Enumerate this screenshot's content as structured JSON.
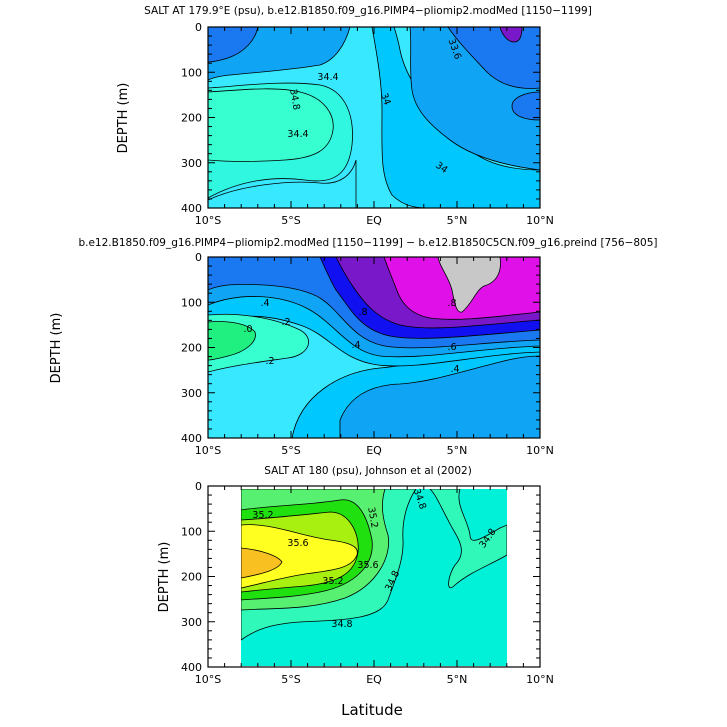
{
  "chart_data": [
    {
      "type": "contour",
      "title": "SALT AT 179.9°E (psu), b.e12.B1850.f09_g16.PIMP4−pliomip2.modMed [1150−1199]",
      "ylabel": "DEPTH (m)",
      "xlabel": "",
      "xlim": [
        -10,
        10
      ],
      "ylim": [
        0,
        400
      ],
      "x_ticks": [
        "10°S",
        "5°S",
        "EQ",
        "5°N",
        "10°N"
      ],
      "y_ticks": [
        "0",
        "100",
        "200",
        "300",
        "400"
      ],
      "contour_labels": [
        "34.4",
        "34.8",
        "34.4",
        "34",
        "34",
        "33.6"
      ],
      "colors": {
        "lightest": "#38e8ff",
        "light": "#00c8ff",
        "mid": "#10a4f4",
        "dark": "#1a78f0",
        "cyan_green": "#38ffd0",
        "aqua": "#30f8e0",
        "purple": "#7818c8"
      }
    },
    {
      "type": "contour",
      "title": "b.e12.B1850.f09_g16.PIMP4−pliomip2.modMed [1150−1199] − b.e12.B1850C5CN.f09_g16.preind [756−805]",
      "ylabel": "DEPTH (m)",
      "xlabel": "",
      "xlim": [
        -10,
        10
      ],
      "ylim": [
        0,
        400
      ],
      "x_ticks": [
        "10°S",
        "5°S",
        "EQ",
        "5°N",
        "10°N"
      ],
      "y_ticks": [
        "0",
        "100",
        "200",
        "300",
        "400"
      ],
      "contour_labels": [
        ".4",
        ".2",
        ".0",
        ".2",
        ".8",
        ".4",
        ".6",
        ".4",
        ".8"
      ],
      "colors": {
        "lightest": "#38e8ff",
        "light": "#00c8ff",
        "mid": "#10a4f4",
        "dark": "#1a78f0",
        "blue": "#1010f0",
        "purple": "#7818c8",
        "magenta": "#e010e8",
        "gray": "#c8c8c8",
        "green": "#20f080",
        "cyan_green": "#38ffd0"
      }
    },
    {
      "type": "contour",
      "title": "SALT AT 180 (psu), Johnson et al (2002)",
      "ylabel": "DEPTH (m)",
      "xlabel": "Latitude",
      "xlim": [
        -10,
        10
      ],
      "ylim": [
        0,
        400
      ],
      "data_xlim": [
        -8,
        8
      ],
      "data_ylim": [
        10,
        400
      ],
      "x_ticks": [
        "10°S",
        "5°S",
        "EQ",
        "5°N",
        "10°N"
      ],
      "y_ticks": [
        "0",
        "100",
        "200",
        "300",
        "400"
      ],
      "contour_labels": [
        "35.2",
        "35.2",
        "34.8",
        "35.6",
        "35.6",
        "34.8",
        "35.2",
        "34.8",
        "34.8"
      ],
      "colors": {
        "aqua": "#00f0d8",
        "mint": "#30f8b8",
        "green_l": "#58f070",
        "green": "#20e010",
        "lime": "#a8f010",
        "yellow": "#ffff20",
        "orange": "#f8c020"
      }
    }
  ]
}
